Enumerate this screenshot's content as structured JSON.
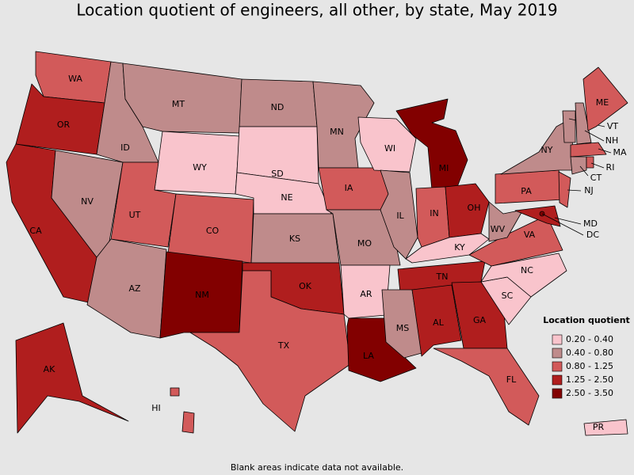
{
  "title": "Location quotient of engineers, all other, by state, May 2019",
  "footnote": "Blank areas indicate data not available.",
  "legend": {
    "title": "Location quotient",
    "items": [
      {
        "label": "0.20 - 0.40",
        "color": "#f9c4cc"
      },
      {
        "label": "0.40 - 0.80",
        "color": "#bf8b8b"
      },
      {
        "label": "0.80 - 1.25",
        "color": "#d25a5a"
      },
      {
        "label": "1.25 - 2.50",
        "color": "#b01e1e"
      },
      {
        "label": "2.50 - 3.50",
        "color": "#820000"
      }
    ]
  },
  "states": [
    {
      "label": "WA",
      "bucket": 2
    },
    {
      "label": "OR",
      "bucket": 3
    },
    {
      "label": "CA",
      "bucket": 3
    },
    {
      "label": "NV",
      "bucket": 1
    },
    {
      "label": "ID",
      "bucket": 1
    },
    {
      "label": "MT",
      "bucket": 1
    },
    {
      "label": "WY",
      "bucket": 0
    },
    {
      "label": "UT",
      "bucket": 2
    },
    {
      "label": "CO",
      "bucket": 2
    },
    {
      "label": "AZ",
      "bucket": 1
    },
    {
      "label": "NM",
      "bucket": 4
    },
    {
      "label": "ND",
      "bucket": 1
    },
    {
      "label": "SD",
      "bucket": 0
    },
    {
      "label": "NE",
      "bucket": 0
    },
    {
      "label": "KS",
      "bucket": 1
    },
    {
      "label": "OK",
      "bucket": 3
    },
    {
      "label": "TX",
      "bucket": 2
    },
    {
      "label": "MN",
      "bucket": 1
    },
    {
      "label": "IA",
      "bucket": 2
    },
    {
      "label": "MO",
      "bucket": 1
    },
    {
      "label": "AR",
      "bucket": 0
    },
    {
      "label": "LA",
      "bucket": 4
    },
    {
      "label": "WI",
      "bucket": 0
    },
    {
      "label": "IL",
      "bucket": 1
    },
    {
      "label": "MI",
      "bucket": 4
    },
    {
      "label": "IN",
      "bucket": 2
    },
    {
      "label": "OH",
      "bucket": 3
    },
    {
      "label": "KY",
      "bucket": 0
    },
    {
      "label": "TN",
      "bucket": 3
    },
    {
      "label": "MS",
      "bucket": 1
    },
    {
      "label": "AL",
      "bucket": 3
    },
    {
      "label": "GA",
      "bucket": 3
    },
    {
      "label": "FL",
      "bucket": 2
    },
    {
      "label": "SC",
      "bucket": 0
    },
    {
      "label": "NC",
      "bucket": 0
    },
    {
      "label": "VA",
      "bucket": 2
    },
    {
      "label": "WV",
      "bucket": 1
    },
    {
      "label": "PA",
      "bucket": 2
    },
    {
      "label": "NY",
      "bucket": 1
    },
    {
      "label": "NJ",
      "bucket": 2
    },
    {
      "label": "MD",
      "bucket": 3
    },
    {
      "label": "DC",
      "bucket": 4
    },
    {
      "label": "VT",
      "bucket": 1
    },
    {
      "label": "NH",
      "bucket": 1
    },
    {
      "label": "MA",
      "bucket": 2
    },
    {
      "label": "CT",
      "bucket": 1
    },
    {
      "label": "RI",
      "bucket": 2
    },
    {
      "label": "ME",
      "bucket": 2
    },
    {
      "label": "AK",
      "bucket": 3
    },
    {
      "label": "HI",
      "bucket": 2
    },
    {
      "label": "PR",
      "bucket": 0
    }
  ]
}
